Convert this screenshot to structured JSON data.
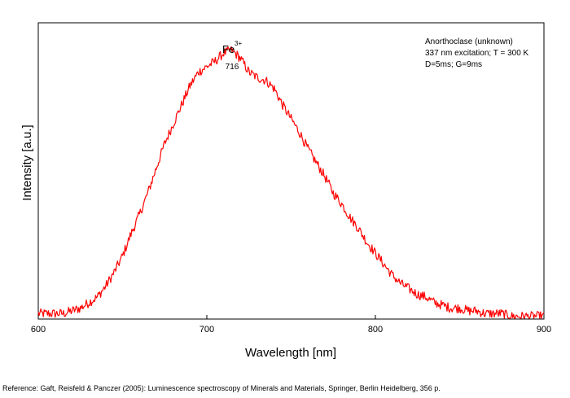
{
  "chart_data": {
    "type": "line",
    "xlabel": "Wavelength [nm]",
    "ylabel": "Intensity [a.u.]",
    "xlim": [
      600,
      900
    ],
    "ylim": [
      0,
      1.08
    ],
    "x_ticks": [
      600,
      700,
      800,
      900
    ],
    "y_tick_labels": false,
    "grid": false,
    "line_color": "#ff0000",
    "annotations": {
      "info": [
        "Anorthoclase (unknown)",
        "337 nm excitation; T = 300 K",
        "D=5ms; G=9ms"
      ],
      "info_placement": "top-right",
      "peak": {
        "ion": "Fe",
        "charge": "3+",
        "wavelength_label": "716",
        "x": 716
      }
    },
    "series": [
      {
        "x": [
          600,
          605,
          610,
          615,
          620,
          625,
          630,
          635,
          640,
          645,
          650,
          655,
          660,
          665,
          670,
          675,
          680,
          685,
          690,
          695,
          700,
          705,
          710,
          715,
          720,
          725,
          730,
          735,
          740,
          745,
          750,
          755,
          760,
          765,
          770,
          775,
          780,
          785,
          790,
          795,
          800,
          805,
          810,
          815,
          820,
          825,
          830,
          835,
          840,
          845,
          850,
          855,
          860,
          865,
          870,
          875,
          880,
          885,
          890,
          895,
          900
        ],
        "y": [
          0.02,
          0.02,
          0.02,
          0.02,
          0.03,
          0.04,
          0.06,
          0.08,
          0.12,
          0.17,
          0.23,
          0.31,
          0.38,
          0.46,
          0.55,
          0.64,
          0.71,
          0.78,
          0.85,
          0.9,
          0.92,
          0.94,
          0.97,
          0.98,
          0.95,
          0.9,
          0.88,
          0.87,
          0.84,
          0.78,
          0.73,
          0.68,
          0.62,
          0.57,
          0.52,
          0.46,
          0.42,
          0.37,
          0.33,
          0.28,
          0.24,
          0.2,
          0.16,
          0.13,
          0.11,
          0.09,
          0.08,
          0.06,
          0.05,
          0.04,
          0.04,
          0.03,
          0.03,
          0.02,
          0.02,
          0.02,
          0.01,
          0.01,
          0.01,
          0.01,
          0.01
        ]
      }
    ]
  },
  "footer": {
    "reference": "Reference: Gaft, Reisfeld & Panczer (2005): Luminescence spectroscopy of Minerals and Materials, Springer, Berlin Heidelberg, 356 p."
  }
}
